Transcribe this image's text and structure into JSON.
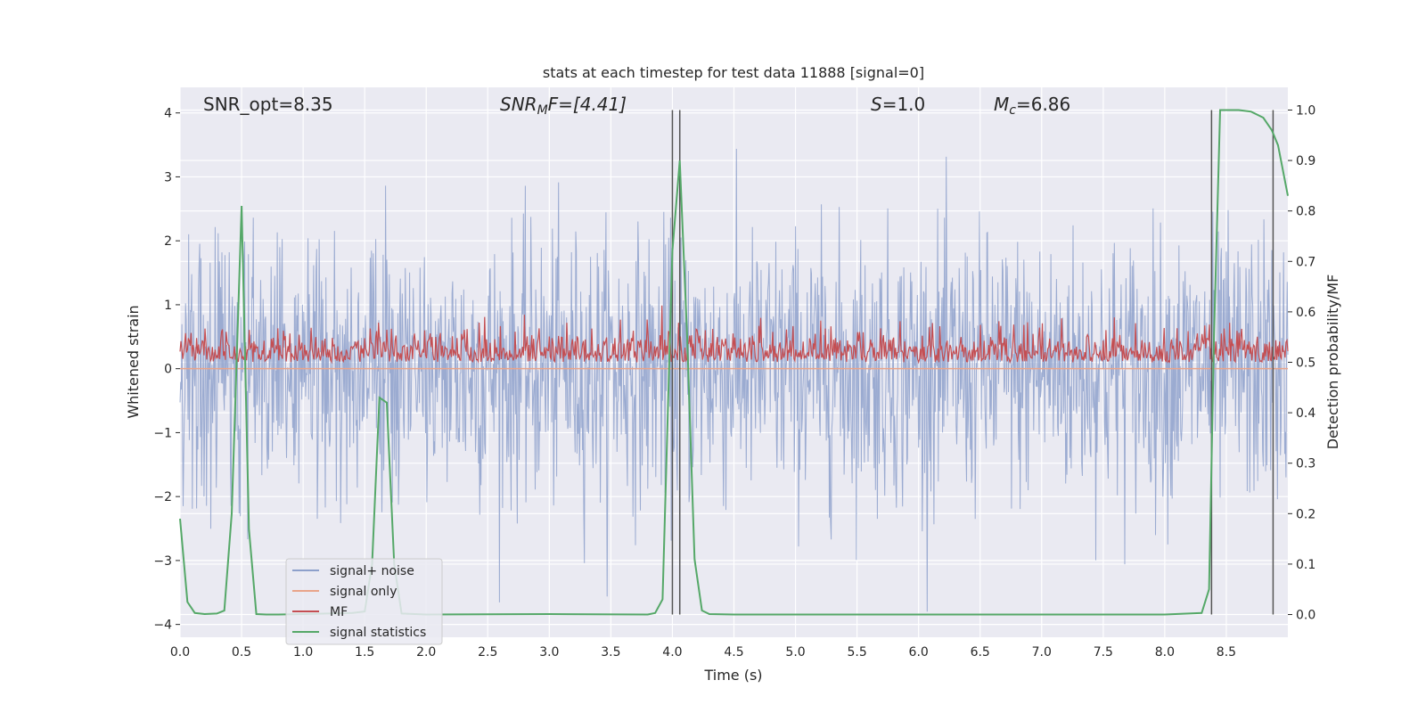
{
  "chart_data": {
    "type": "line",
    "title": "stats at each timestep for test data 11888 [signal=0]",
    "xlabel": "Time (s)",
    "ylabel_left": "Whitened strain",
    "ylabel_right": "Detection probability/MF",
    "xlim": [
      0,
      9
    ],
    "ylim_left": [
      -4.2,
      4.4
    ],
    "ylim_right": [
      -0.045,
      1.045
    ],
    "x_ticks": [
      "0.0",
      "0.5",
      "1.0",
      "1.5",
      "2.0",
      "2.5",
      "3.0",
      "3.5",
      "4.0",
      "4.5",
      "5.0",
      "5.5",
      "6.0",
      "6.5",
      "7.0",
      "7.5",
      "8.0",
      "8.5"
    ],
    "y_ticks_left": [
      "4",
      "3",
      "2",
      "1",
      "0",
      "−1",
      "−2",
      "−3",
      "−4"
    ],
    "y_ticks_right": [
      "1.0",
      "0.9",
      "0.8",
      "0.7",
      "0.6",
      "0.5",
      "0.4",
      "0.3",
      "0.2",
      "0.1",
      "0.0"
    ],
    "annotations": [
      {
        "text": "SNR_opt=8.35"
      },
      {
        "text": "SNR",
        "sub": "M",
        "rest": "F=[4.41]"
      },
      {
        "text": "S",
        "rest": "=1.0"
      },
      {
        "text": "M",
        "sub": "c",
        "rest": "=6.86"
      }
    ],
    "legend": {
      "position": "lower-left",
      "entries": [
        {
          "label": "signal+ noise",
          "color": "#8da0cb"
        },
        {
          "label": "signal only",
          "color": "#e9a48a"
        },
        {
          "label": "MF",
          "color": "#c44e52"
        },
        {
          "label": "signal statistics",
          "color": "#55a868"
        }
      ]
    },
    "grid": true,
    "series": [
      {
        "name": "signal+ noise",
        "axis": "left",
        "color": "#8da0cb",
        "description": "whitened noise spanning roughly -3.8 to 3.5",
        "amplitude_envelope": [
          -3.8,
          3.5
        ]
      },
      {
        "name": "signal only",
        "axis": "left",
        "color": "#e9a48a",
        "x": [
          0,
          9
        ],
        "y": [
          0,
          0
        ]
      },
      {
        "name": "MF",
        "axis": "right",
        "color": "#c44e52",
        "description": "matched filter output fluctuating roughly between 0.50 and 0.62",
        "range": [
          0.5,
          0.62
        ]
      },
      {
        "name": "signal statistics",
        "axis": "right",
        "color": "#55a868",
        "x": [
          0.0,
          0.06,
          0.12,
          0.2,
          0.3,
          0.36,
          0.42,
          0.5,
          0.56,
          0.62,
          0.7,
          0.8,
          1.0,
          1.2,
          1.4,
          1.5,
          1.56,
          1.62,
          1.68,
          1.74,
          1.8,
          2.0,
          3.0,
          3.8,
          3.86,
          3.92,
          4.0,
          4.06,
          4.12,
          4.18,
          4.24,
          4.3,
          4.5,
          6.0,
          8.0,
          8.3,
          8.36,
          8.4,
          8.45,
          8.6,
          8.7,
          8.8,
          8.87,
          8.92,
          9.0
        ],
        "y": [
          0.19,
          0.025,
          0.003,
          0.001,
          0.002,
          0.008,
          0.2,
          0.81,
          0.17,
          0.001,
          0.0,
          0.0,
          0.001,
          0.002,
          0.003,
          0.006,
          0.1,
          0.43,
          0.42,
          0.1,
          0.002,
          0.0,
          0.001,
          0.0,
          0.003,
          0.03,
          0.72,
          0.9,
          0.55,
          0.11,
          0.008,
          0.001,
          0.0,
          0.0,
          0.0,
          0.003,
          0.05,
          0.55,
          1.0,
          1.0,
          0.997,
          0.985,
          0.96,
          0.93,
          0.83
        ]
      }
    ],
    "vertical_lines": [
      4.0,
      4.06,
      8.38,
      8.88
    ]
  }
}
